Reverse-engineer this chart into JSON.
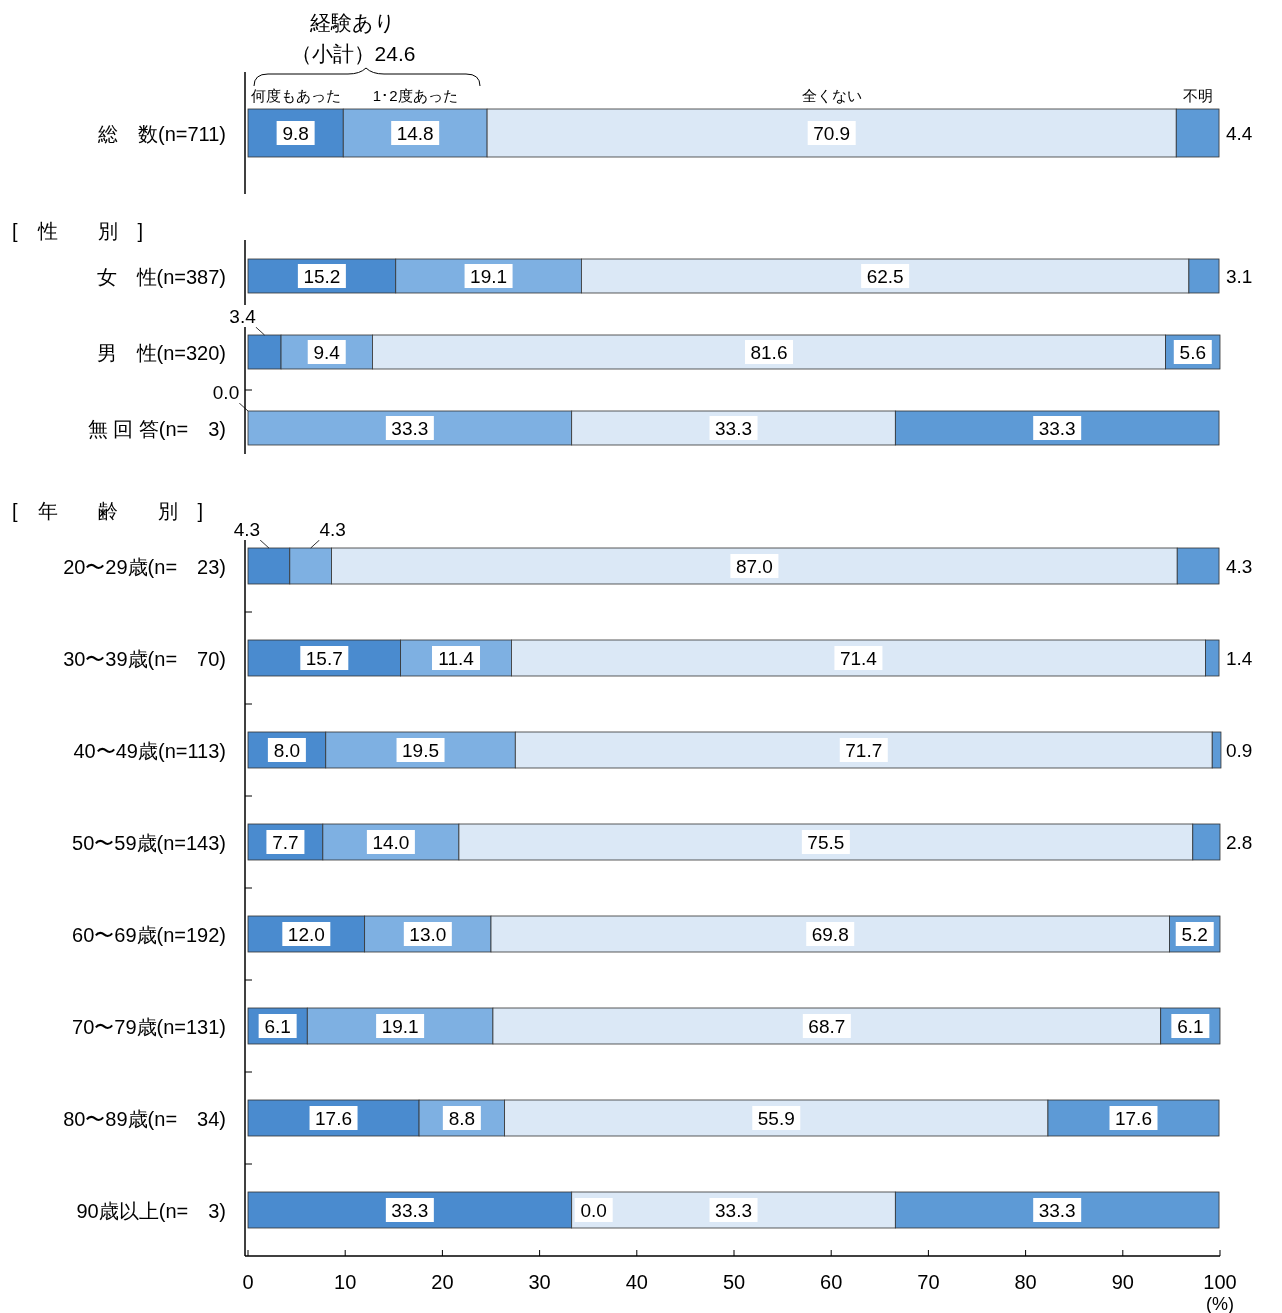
{
  "chart_data": [
    {
      "type": "bar",
      "orientation": "horizontal",
      "stacked": true,
      "categories": [
        "総　数(n=711)"
      ],
      "series": [
        {
          "name": "何度もあった",
          "color": "#4a8bcf",
          "values": [
            9.8
          ]
        },
        {
          "name": "1･2度あった",
          "color": "#7eb0e2",
          "values": [
            14.8
          ]
        },
        {
          "name": "全くない",
          "color": "#dbe8f6",
          "values": [
            70.9
          ]
        },
        {
          "name": "不明",
          "color": "#5d9ad6",
          "values": [
            4.4
          ]
        }
      ],
      "xlim": [
        0,
        100
      ],
      "tick_labels": "y",
      "data_labels": true,
      "legend": "top",
      "annotations": [
        "経験あり",
        "（小計）24.6"
      ]
    },
    {
      "type": "bar",
      "orientation": "horizontal",
      "stacked": true,
      "title": "[　性　　別　]",
      "categories": [
        "女　性(n=387)",
        "男　性(n=320)",
        "無 回 答(n=　3)"
      ],
      "series": [
        {
          "color": "#4a8bcf",
          "values": [
            15.2,
            3.4,
            0.0
          ]
        },
        {
          "color": "#7eb0e2",
          "values": [
            19.1,
            9.4,
            33.3
          ]
        },
        {
          "color": "#dbe8f6",
          "values": [
            62.5,
            81.6,
            33.3
          ]
        },
        {
          "color": "#5d9ad6",
          "values": [
            3.1,
            5.6,
            33.3
          ]
        }
      ],
      "xlim": [
        0,
        100
      ],
      "tick_labels": "y",
      "value_labels": [
        [
          "15.2",
          "3.4",
          "0.0"
        ],
        [
          "19.1",
          "9.4",
          "33.3"
        ],
        [
          "62.5",
          "81.6",
          "33.3"
        ],
        [
          "3.1",
          "5.6",
          "33.3"
        ]
      ]
    },
    {
      "type": "bar",
      "orientation": "horizontal",
      "stacked": true,
      "title": "[　年　　齢　　別　]",
      "xlabel": "(%)",
      "categories": [
        "20〜29歳(n=　23)",
        "30〜39歳(n=　70)",
        "40〜49歳(n=113)",
        "50〜59歳(n=143)",
        "60〜69歳(n=192)",
        "70〜79歳(n=131)",
        "80〜89歳(n=　34)",
        "90歳以上(n=　3)"
      ],
      "series": [
        {
          "color": "#4a8bcf",
          "values": [
            4.3,
            15.7,
            8.0,
            7.7,
            12.0,
            6.1,
            17.6,
            33.3
          ]
        },
        {
          "color": "#7eb0e2",
          "values": [
            4.3,
            11.4,
            19.5,
            14.0,
            13.0,
            19.1,
            8.8,
            0.0
          ]
        },
        {
          "color": "#dbe8f6",
          "values": [
            87.0,
            71.4,
            71.7,
            75.5,
            69.8,
            68.7,
            55.9,
            33.3
          ]
        },
        {
          "color": "#5d9ad6",
          "values": [
            4.3,
            1.4,
            0.9,
            2.8,
            5.2,
            6.1,
            17.6,
            33.3
          ]
        }
      ],
      "xlim": [
        0,
        100
      ],
      "xticks": [
        0,
        10,
        20,
        30,
        40,
        50,
        60,
        70,
        80,
        90,
        100
      ],
      "value_labels": [
        [
          "4.3",
          "15.7",
          "8.0",
          "7.7",
          "12.0",
          "6.1",
          "17.6",
          "33.3"
        ],
        [
          "4.3",
          "11.4",
          "19.5",
          "14.0",
          "13.0",
          "19.1",
          "8.8",
          "0.0"
        ],
        [
          "87.0",
          "71.4",
          "71.7",
          "75.5",
          "69.8",
          "68.7",
          "55.9",
          "33.3"
        ],
        [
          "4.3",
          "1.4",
          "0.9",
          "2.8",
          "5.2",
          "6.1",
          "17.6",
          "33.3"
        ]
      ]
    }
  ]
}
